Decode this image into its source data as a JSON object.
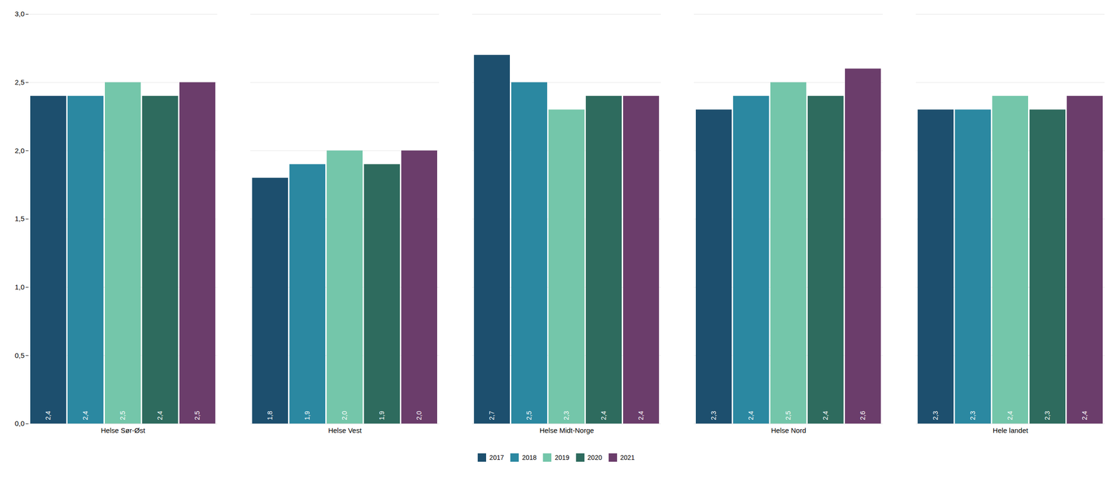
{
  "chart_data": {
    "type": "bar",
    "categories": [
      "Helse Sør-Øst",
      "Helse Vest",
      "Helse Midt-Norge",
      "Helse Nord",
      "Hele landet"
    ],
    "series": [
      {
        "name": "2017",
        "color": "#1d4f6e",
        "values": [
          2.4,
          1.8,
          2.7,
          2.3,
          2.3
        ],
        "value_labels": [
          "2,4",
          "1,8",
          "2,7",
          "2,3",
          "2,3"
        ]
      },
      {
        "name": "2018",
        "color": "#2b88a1",
        "values": [
          2.4,
          1.9,
          2.5,
          2.4,
          2.3
        ],
        "value_labels": [
          "2,4",
          "1,9",
          "2,5",
          "2,4",
          "2,3"
        ]
      },
      {
        "name": "2019",
        "color": "#74c6aa",
        "values": [
          2.5,
          2.0,
          2.3,
          2.5,
          2.4
        ],
        "value_labels": [
          "2,5",
          "2,0",
          "2,3",
          "2,5",
          "2,4"
        ]
      },
      {
        "name": "2020",
        "color": "#2e6b5e",
        "values": [
          2.4,
          1.9,
          2.4,
          2.4,
          2.3
        ],
        "value_labels": [
          "2,4",
          "1,9",
          "2,4",
          "2,4",
          "2,3"
        ]
      },
      {
        "name": "2021",
        "color": "#6b3d6b",
        "values": [
          2.5,
          2.0,
          2.4,
          2.6,
          2.4
        ],
        "value_labels": [
          "2,5",
          "2,0",
          "2,4",
          "2,6",
          "2,4"
        ]
      }
    ],
    "ylim": [
      0,
      3.0
    ],
    "yticks": [
      {
        "value": 0.0,
        "label": "0,0"
      },
      {
        "value": 0.5,
        "label": "0,5"
      },
      {
        "value": 1.0,
        "label": "1,0"
      },
      {
        "value": 1.5,
        "label": "1,5"
      },
      {
        "value": 2.0,
        "label": "2,0"
      },
      {
        "value": 2.5,
        "label": "2,5"
      },
      {
        "value": 3.0,
        "label": "3,0"
      }
    ],
    "grid": true,
    "legend": "bottom",
    "data_labels": true
  }
}
